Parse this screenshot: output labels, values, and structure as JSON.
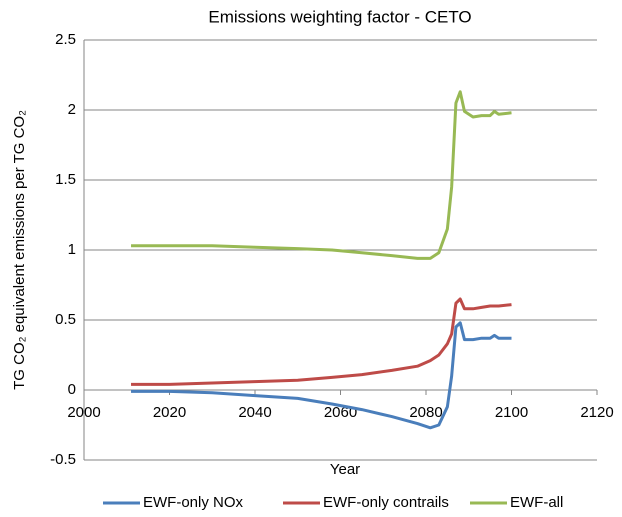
{
  "chart_data": {
    "type": "line",
    "title": "Emissions weighting factor - CETO",
    "xlabel": "Year",
    "ylabel": "TG CO₂ equivalent emissions per TG CO₂",
    "x": [
      2011,
      2020,
      2030,
      2040,
      2050,
      2058,
      2065,
      2072,
      2078,
      2081,
      2083,
      2085,
      2086,
      2087,
      2088,
      2089,
      2091,
      2093,
      2095,
      2096,
      2097,
      2100
    ],
    "series": [
      {
        "name": "EWF-only NOx",
        "color": "#4a7ebb",
        "values": [
          -0.01,
          -0.01,
          -0.02,
          -0.04,
          -0.06,
          -0.1,
          -0.14,
          -0.19,
          -0.24,
          -0.27,
          -0.25,
          -0.12,
          0.1,
          0.45,
          0.48,
          0.36,
          0.36,
          0.37,
          0.37,
          0.39,
          0.37,
          0.37
        ]
      },
      {
        "name": "EWF-only contrails",
        "color": "#be4b48",
        "values": [
          0.04,
          0.04,
          0.05,
          0.06,
          0.07,
          0.09,
          0.11,
          0.14,
          0.17,
          0.21,
          0.25,
          0.33,
          0.4,
          0.62,
          0.65,
          0.58,
          0.58,
          0.59,
          0.6,
          0.6,
          0.6,
          0.61
        ]
      },
      {
        "name": "EWF-all",
        "color": "#98b954",
        "values": [
          1.03,
          1.03,
          1.03,
          1.02,
          1.01,
          1.0,
          0.98,
          0.96,
          0.94,
          0.94,
          0.98,
          1.15,
          1.45,
          2.05,
          2.13,
          1.99,
          1.95,
          1.96,
          1.96,
          1.99,
          1.97,
          1.98
        ]
      }
    ],
    "xlim": [
      2000,
      2120
    ],
    "xticks": [
      2000,
      2020,
      2040,
      2060,
      2080,
      2100,
      2120
    ],
    "ylim": [
      -0.5,
      2.5
    ],
    "yticks": [
      -0.5,
      0,
      0.5,
      1,
      1.5,
      2,
      2.5
    ],
    "grid": true,
    "legend": "bottom"
  }
}
